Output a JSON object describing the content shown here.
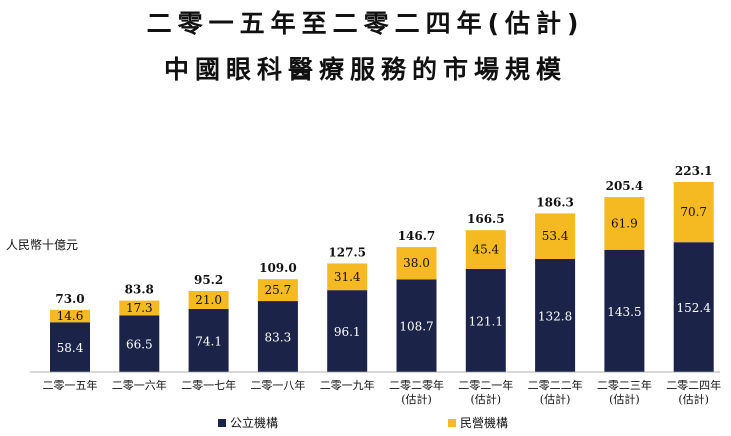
{
  "chart_data": {
    "type": "bar",
    "stacked": true,
    "title": "二零一五年至二零二四年(估計)",
    "subtitle": "中國眼科醫療服務的市場規模",
    "ylabel": "人民幣十億元",
    "categories": [
      [
        "二零一五年"
      ],
      [
        "二零一六年"
      ],
      [
        "二零一七年"
      ],
      [
        "二零一八年"
      ],
      [
        "二零一九年"
      ],
      [
        "二零二零年",
        "(估計)"
      ],
      [
        "二零二一年",
        "(估計)"
      ],
      [
        "二零二二年",
        "(估計)"
      ],
      [
        "二零二三年",
        "(估計)"
      ],
      [
        "二零二四年",
        "(估計)"
      ]
    ],
    "series": [
      {
        "name": "公立機構",
        "color": "#1b2448",
        "values": [
          58.4,
          66.5,
          74.1,
          83.3,
          96.1,
          108.7,
          121.1,
          132.8,
          143.5,
          152.4
        ]
      },
      {
        "name": "民營機構",
        "color": "#f5b921",
        "values": [
          14.6,
          17.3,
          21.0,
          25.7,
          31.4,
          38.0,
          45.4,
          53.4,
          61.9,
          70.7
        ]
      }
    ],
    "totals": [
      73.0,
      83.8,
      95.2,
      109.0,
      127.5,
      146.7,
      166.5,
      186.3,
      205.4,
      223.1
    ],
    "ylim": [
      0,
      223.1
    ],
    "grid": false,
    "legend": "bottom"
  }
}
